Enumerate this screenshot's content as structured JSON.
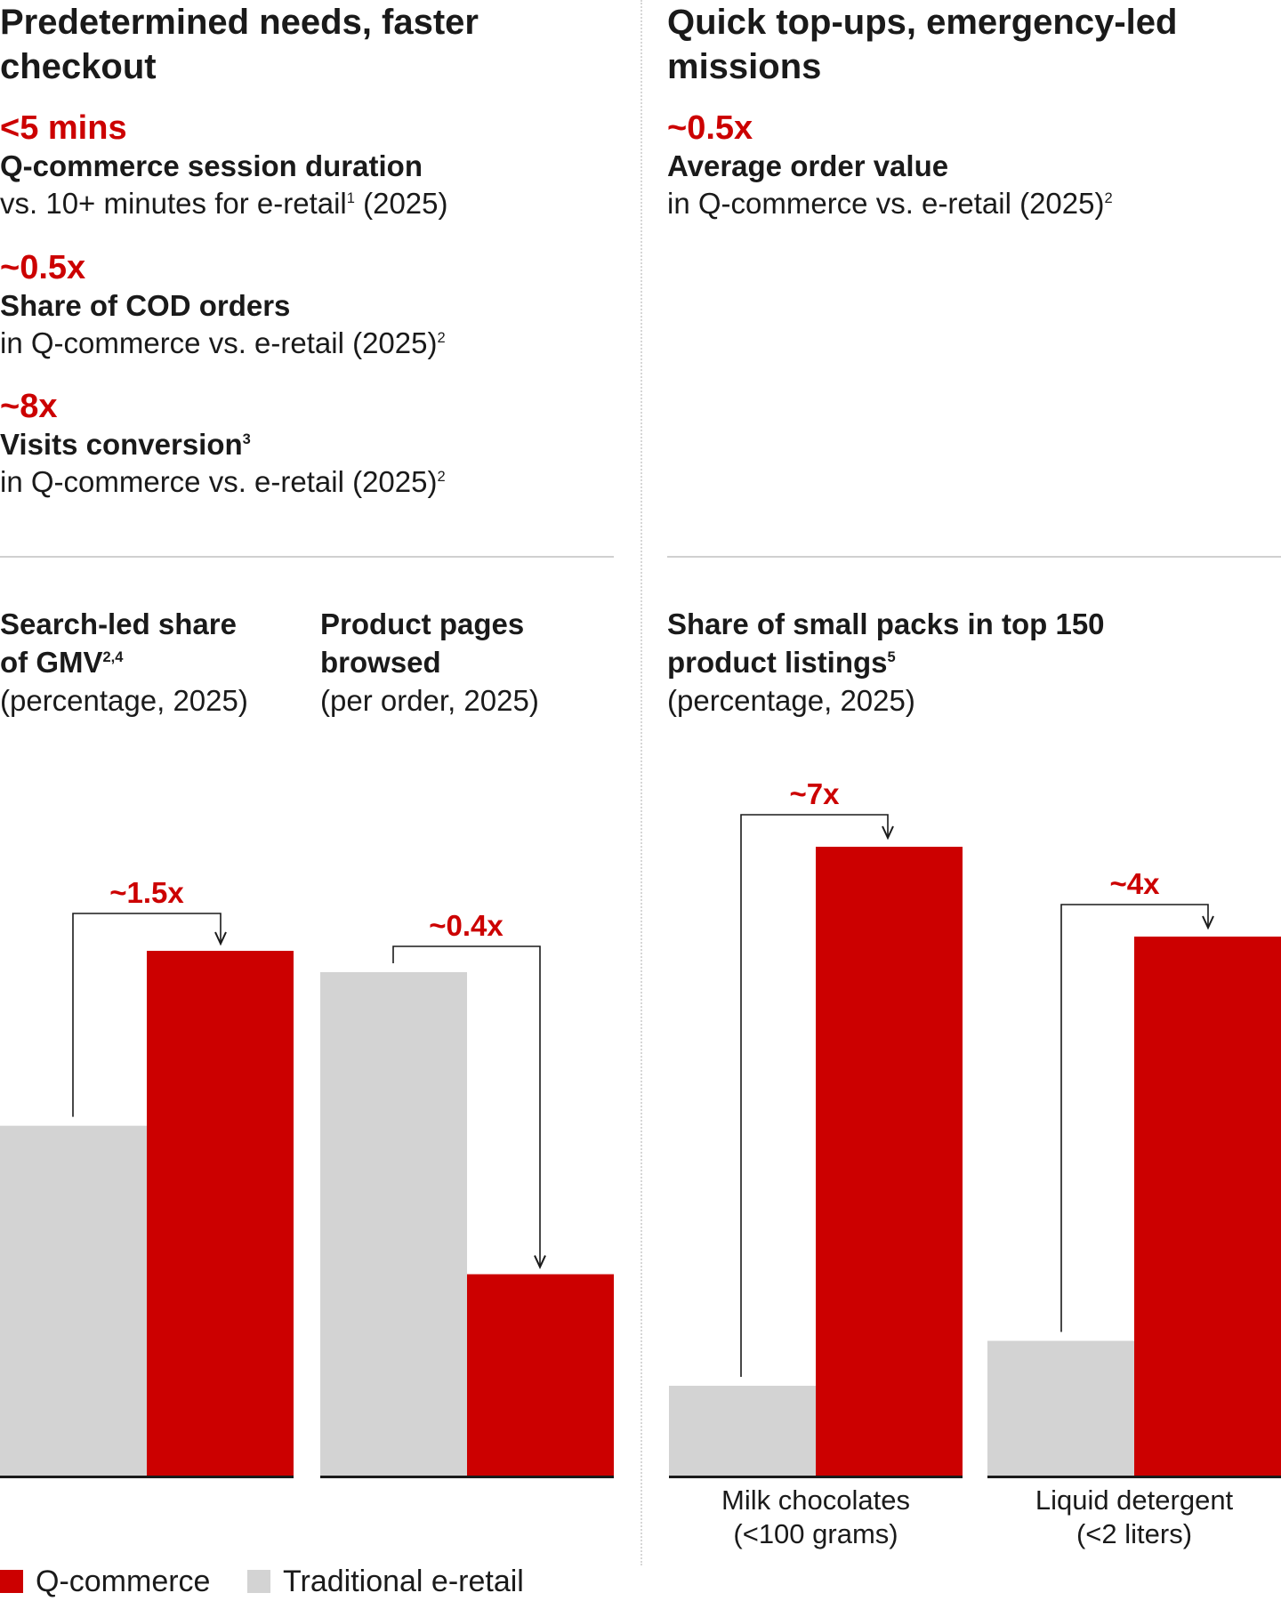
{
  "left_section": {
    "heading_line1": "Predetermined needs, faster",
    "heading_line2": "checkout",
    "kpis": [
      {
        "value": "<5 mins",
        "title": "Q-commerce session duration",
        "desc_pre": "vs. 10+ minutes for e-retail",
        "desc_sup": "1",
        "desc_post": " (2025)"
      },
      {
        "value": "~0.5x",
        "title": "Share of COD orders",
        "desc_pre": "in Q-commerce vs. e-retail (2025)",
        "desc_sup": "2",
        "desc_post": ""
      },
      {
        "value": "~8x",
        "title": "Visits conversion",
        "title_sup": "3",
        "desc_pre": "in Q-commerce vs. e-retail (2025)",
        "desc_sup": "2",
        "desc_post": ""
      }
    ]
  },
  "right_section": {
    "heading_line1": "Quick top-ups, emergency-led",
    "heading_line2": "missions",
    "kpis": [
      {
        "value": "~0.5x",
        "title": "Average order value",
        "desc_pre": "in Q-commerce vs. e-retail (2025)",
        "desc_sup": "2",
        "desc_post": ""
      }
    ]
  },
  "chart_titles": {
    "search": {
      "line1": "Search-led share",
      "line2": "of GMV",
      "sup": "2,4",
      "sub": "(percentage, 2025)"
    },
    "pages": {
      "line1": "Product pages",
      "line2": "browsed",
      "sub": "(per order, 2025)"
    },
    "packs": {
      "line1": "Share of small packs in top 150",
      "line2": "product listings",
      "sup": "5",
      "sub": "(percentage, 2025)"
    }
  },
  "chart_data": [
    {
      "type": "bar",
      "title": "Search-led share of GMV (percentage, 2025)",
      "categories": [
        "Traditional e-retail",
        "Q-commerce"
      ],
      "values": [
        40,
        60
      ],
      "ylim": [
        0,
        60
      ],
      "annotation": "~1.5x"
    },
    {
      "type": "bar",
      "title": "Product pages browsed (per order, 2025)",
      "categories": [
        "Traditional e-retail",
        "Q-commerce"
      ],
      "values": [
        10,
        4
      ],
      "ylim": [
        0,
        10
      ],
      "annotation": "~0.4x"
    },
    {
      "type": "bar",
      "title": "Share of small packs in top 150 product listings (percentage, 2025)",
      "categories": [
        "Milk chocolates (<100 grams)",
        "Liquid detergent (<2 liters)"
      ],
      "series": [
        {
          "name": "Traditional e-retail",
          "values": [
            10,
            15
          ]
        },
        {
          "name": "Q-commerce",
          "values": [
            70,
            60
          ]
        }
      ],
      "ylim": [
        0,
        70
      ],
      "annotations": [
        "~7x",
        "~4x"
      ],
      "category_lines": [
        [
          "Milk chocolates",
          "(<100 grams)"
        ],
        [
          "Liquid detergent",
          "(<2 liters)"
        ]
      ]
    }
  ],
  "legend": [
    {
      "label": "Q-commerce",
      "color": "#cc0000"
    },
    {
      "label": "Traditional e-retail",
      "color": "#d3d3d3"
    }
  ],
  "colors": {
    "qcommerce": "#cc0000",
    "eretail": "#d3d3d3",
    "axis": "#1a1a1a"
  }
}
